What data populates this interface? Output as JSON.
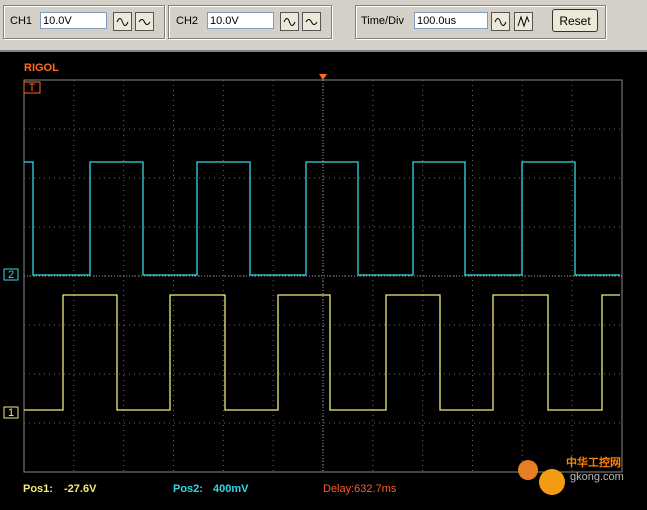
{
  "toolbar": {
    "ch1_label": "CH1",
    "ch1_value": "10.0V",
    "ch2_label": "CH2",
    "ch2_value": "10.0V",
    "timediv_label": "Time/Div",
    "timediv_value": "100.0us",
    "reset": "Reset"
  },
  "screen": {
    "brand": "RIGOL",
    "trigger_marker": "T",
    "ch2_marker": "2",
    "ch1_marker": "1"
  },
  "status": {
    "pos1_label": "Pos1:",
    "pos1_value": "-27.6V",
    "pos2_label": "Pos2:",
    "pos2_value": "400mV",
    "delay": "Delay:632.7ms"
  },
  "watermark": {
    "name": "中华工控网",
    "url": "gkong.com"
  }
}
